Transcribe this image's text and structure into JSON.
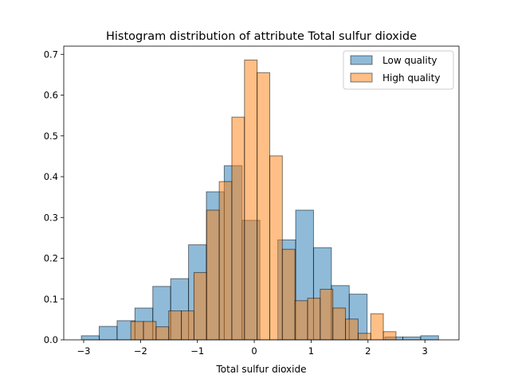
{
  "chart_data": {
    "type": "bar",
    "title": "Histogram distribution of attribute Total sulfur dioxide",
    "xlabel": "Total sulfur dioxide",
    "ylabel": "",
    "xlim": [
      -3.35,
      3.6
    ],
    "ylim": [
      0,
      0.72
    ],
    "xticks": [
      -3,
      -2,
      -1,
      0,
      1,
      2,
      3
    ],
    "xtick_labels": [
      "−3",
      "−2",
      "−1",
      "0",
      "1",
      "2",
      "3"
    ],
    "yticks": [
      0,
      0.1,
      0.2,
      0.3,
      0.4,
      0.5,
      0.6,
      0.7
    ],
    "ytick_labels": [
      "0.0",
      "0.1",
      "0.2",
      "0.3",
      "0.4",
      "0.5",
      "0.6",
      "0.7"
    ],
    "grid": false,
    "legend_position": "top-right",
    "series": [
      {
        "name": "Low quality",
        "color": "#1f77b4",
        "bin_edges": [
          -3.04,
          -2.726,
          -2.412,
          -2.098,
          -1.784,
          -1.47,
          -1.156,
          -0.842,
          -0.528,
          -0.214,
          0.1,
          0.414,
          0.728,
          1.042,
          1.356,
          1.67,
          1.984,
          2.298,
          2.612,
          2.926,
          3.24
        ],
        "values": [
          0.01,
          0.033,
          0.047,
          0.078,
          0.131,
          0.15,
          0.233,
          0.363,
          0.427,
          0.293,
          0.0,
          0.245,
          0.318,
          0.226,
          0.133,
          0.112,
          0.0,
          0.007,
          0.007,
          0.01
        ]
      },
      {
        "name": "High quality",
        "color": "#ff7f0e",
        "bin_edges": [
          -2.17,
          -1.948,
          -1.726,
          -1.504,
          -1.282,
          -1.06,
          -0.838,
          -0.616,
          -0.394,
          -0.172,
          0.05,
          0.272,
          0.494,
          0.716,
          0.938,
          1.16,
          1.382,
          1.604,
          1.826,
          2.048,
          2.27,
          2.492
        ],
        "values": [
          0.045,
          0.045,
          0.032,
          0.071,
          0.071,
          0.165,
          0.318,
          0.388,
          0.546,
          0.686,
          0.655,
          0.451,
          0.222,
          0.096,
          0.102,
          0.124,
          0.078,
          0.051,
          0.016,
          0.064,
          0.02
        ]
      }
    ]
  }
}
